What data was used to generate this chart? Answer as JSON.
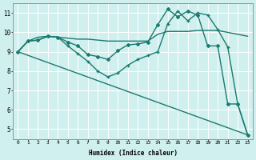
{
  "xlabel": "Humidex (Indice chaleur)",
  "xlim": [
    -0.5,
    23.5
  ],
  "ylim": [
    4.5,
    11.5
  ],
  "xticks": [
    0,
    1,
    2,
    3,
    4,
    5,
    6,
    7,
    8,
    9,
    10,
    11,
    12,
    13,
    14,
    15,
    16,
    17,
    18,
    19,
    20,
    21,
    22,
    23
  ],
  "yticks": [
    5,
    6,
    7,
    8,
    9,
    10,
    11
  ],
  "bg_color": "#d0f0f0",
  "line_color": "#1a7a6e",
  "grid_color": "#ffffff",
  "lines": [
    {
      "x": [
        0,
        1,
        2,
        3,
        4,
        5,
        6,
        7,
        8,
        9,
        10,
        11,
        12,
        13,
        14,
        15,
        16,
        17,
        18,
        19,
        20,
        21,
        22,
        23
      ],
      "y": [
        9.0,
        9.55,
        9.6,
        9.8,
        9.75,
        9.5,
        9.3,
        8.85,
        8.75,
        8.6,
        9.05,
        9.35,
        9.4,
        9.5,
        10.4,
        11.2,
        10.8,
        11.1,
        10.9,
        9.3,
        9.3,
        6.3,
        6.3,
        4.7
      ],
      "marker": "D",
      "markersize": 2.0,
      "linewidth": 1.0
    },
    {
      "x": [
        0,
        1,
        2,
        3,
        4,
        5,
        6,
        7,
        8,
        9,
        10,
        11,
        12,
        13,
        14,
        15,
        16,
        17,
        18,
        19,
        20,
        21,
        22,
        23
      ],
      "y": [
        9.0,
        9.55,
        9.75,
        9.8,
        9.75,
        9.7,
        9.65,
        9.65,
        9.6,
        9.55,
        9.55,
        9.55,
        9.55,
        9.55,
        9.9,
        10.05,
        10.05,
        10.05,
        10.1,
        10.1,
        10.1,
        10.0,
        9.9,
        9.8
      ],
      "marker": null,
      "markersize": 0,
      "linewidth": 1.0
    },
    {
      "x": [
        0,
        1,
        2,
        3,
        4,
        5,
        6,
        7,
        8,
        9,
        10,
        11,
        12,
        13,
        14,
        15,
        16,
        17,
        18,
        19,
        20,
        21,
        22,
        23
      ],
      "y": [
        9.0,
        9.55,
        9.6,
        9.8,
        9.75,
        9.3,
        8.9,
        8.5,
        8.0,
        7.7,
        7.9,
        8.3,
        8.6,
        8.8,
        9.0,
        10.45,
        11.1,
        10.6,
        11.0,
        10.9,
        10.15,
        9.25,
        6.3,
        4.7
      ],
      "marker": "+",
      "markersize": 3.5,
      "linewidth": 1.0
    },
    {
      "x": [
        0,
        23
      ],
      "y": [
        9.0,
        4.7
      ],
      "marker": null,
      "markersize": 0,
      "linewidth": 1.0
    }
  ]
}
